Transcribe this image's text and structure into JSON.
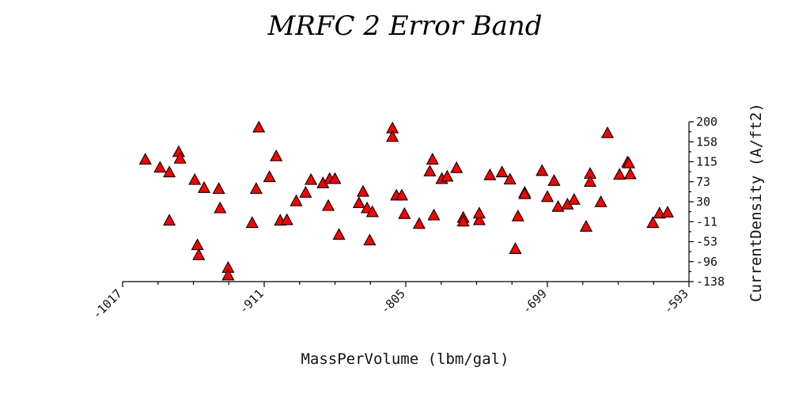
{
  "chart_data": {
    "type": "scatter",
    "title": "MRFC 2 Error Band",
    "xlabel": "MassPerVolume (lbm/gal)",
    "ylabel": "CurrentDensity (A/ft2)",
    "xlim": [
      -1017,
      -593
    ],
    "ylim": [
      -138,
      200
    ],
    "xticks": [
      -1017,
      -911,
      -805,
      -699,
      -593
    ],
    "yticks": [
      200,
      158,
      115,
      73,
      30,
      -11,
      -53,
      -96,
      -138
    ],
    "marker": "triangle",
    "color": "#ff0000",
    "edge_color": "#000000",
    "grid": false,
    "points": [
      {
        "x": -1000,
        "y": 120
      },
      {
        "x": -989,
        "y": 103
      },
      {
        "x": -982,
        "y": 93
      },
      {
        "x": -982,
        "y": -9
      },
      {
        "x": -975,
        "y": 136
      },
      {
        "x": -974,
        "y": 122
      },
      {
        "x": -963,
        "y": 77
      },
      {
        "x": -961,
        "y": -61
      },
      {
        "x": -960,
        "y": -82
      },
      {
        "x": -956,
        "y": 60
      },
      {
        "x": -945,
        "y": 58
      },
      {
        "x": -944,
        "y": 17
      },
      {
        "x": -938,
        "y": -109
      },
      {
        "x": -938,
        "y": -125
      },
      {
        "x": -920,
        "y": -14
      },
      {
        "x": -917,
        "y": 58
      },
      {
        "x": -915,
        "y": 188
      },
      {
        "x": -907,
        "y": 83
      },
      {
        "x": -902,
        "y": 127
      },
      {
        "x": -899,
        "y": -9
      },
      {
        "x": -894,
        "y": -8
      },
      {
        "x": -887,
        "y": 32
      },
      {
        "x": -880,
        "y": 50
      },
      {
        "x": -876,
        "y": 77
      },
      {
        "x": -867,
        "y": 70
      },
      {
        "x": -863,
        "y": 22
      },
      {
        "x": -862,
        "y": 79
      },
      {
        "x": -858,
        "y": 79
      },
      {
        "x": -855,
        "y": -39
      },
      {
        "x": -840,
        "y": 28
      },
      {
        "x": -837,
        "y": 52
      },
      {
        "x": -834,
        "y": 17
      },
      {
        "x": -832,
        "y": -51
      },
      {
        "x": -830,
        "y": 9
      },
      {
        "x": -815,
        "y": 186
      },
      {
        "x": -815,
        "y": 168
      },
      {
        "x": -812,
        "y": 44
      },
      {
        "x": -808,
        "y": 44
      },
      {
        "x": -806,
        "y": 5
      },
      {
        "x": -795,
        "y": -16
      },
      {
        "x": -787,
        "y": 95
      },
      {
        "x": -785,
        "y": 120
      },
      {
        "x": -784,
        "y": 2
      },
      {
        "x": -778,
        "y": 79
      },
      {
        "x": -774,
        "y": 84
      },
      {
        "x": -767,
        "y": 102
      },
      {
        "x": -762,
        "y": -3
      },
      {
        "x": -762,
        "y": -11
      },
      {
        "x": -750,
        "y": -8
      },
      {
        "x": -750,
        "y": 6
      },
      {
        "x": -742,
        "y": 87
      },
      {
        "x": -733,
        "y": 93
      },
      {
        "x": -727,
        "y": 78
      },
      {
        "x": -723,
        "y": -69
      },
      {
        "x": -721,
        "y": 0
      },
      {
        "x": -716,
        "y": 50
      },
      {
        "x": -716,
        "y": 47
      },
      {
        "x": -703,
        "y": 96
      },
      {
        "x": -699,
        "y": 41
      },
      {
        "x": -694,
        "y": 75
      },
      {
        "x": -691,
        "y": 20
      },
      {
        "x": -684,
        "y": 25
      },
      {
        "x": -679,
        "y": 35
      },
      {
        "x": -670,
        "y": -22
      },
      {
        "x": -667,
        "y": 90
      },
      {
        "x": -667,
        "y": 73
      },
      {
        "x": -659,
        "y": 30
      },
      {
        "x": -654,
        "y": 176
      },
      {
        "x": -645,
        "y": 88
      },
      {
        "x": -639,
        "y": 114
      },
      {
        "x": -638,
        "y": 112
      },
      {
        "x": -637,
        "y": 89
      },
      {
        "x": -620,
        "y": -14
      },
      {
        "x": -615,
        "y": 6
      },
      {
        "x": -609,
        "y": 8
      }
    ]
  }
}
